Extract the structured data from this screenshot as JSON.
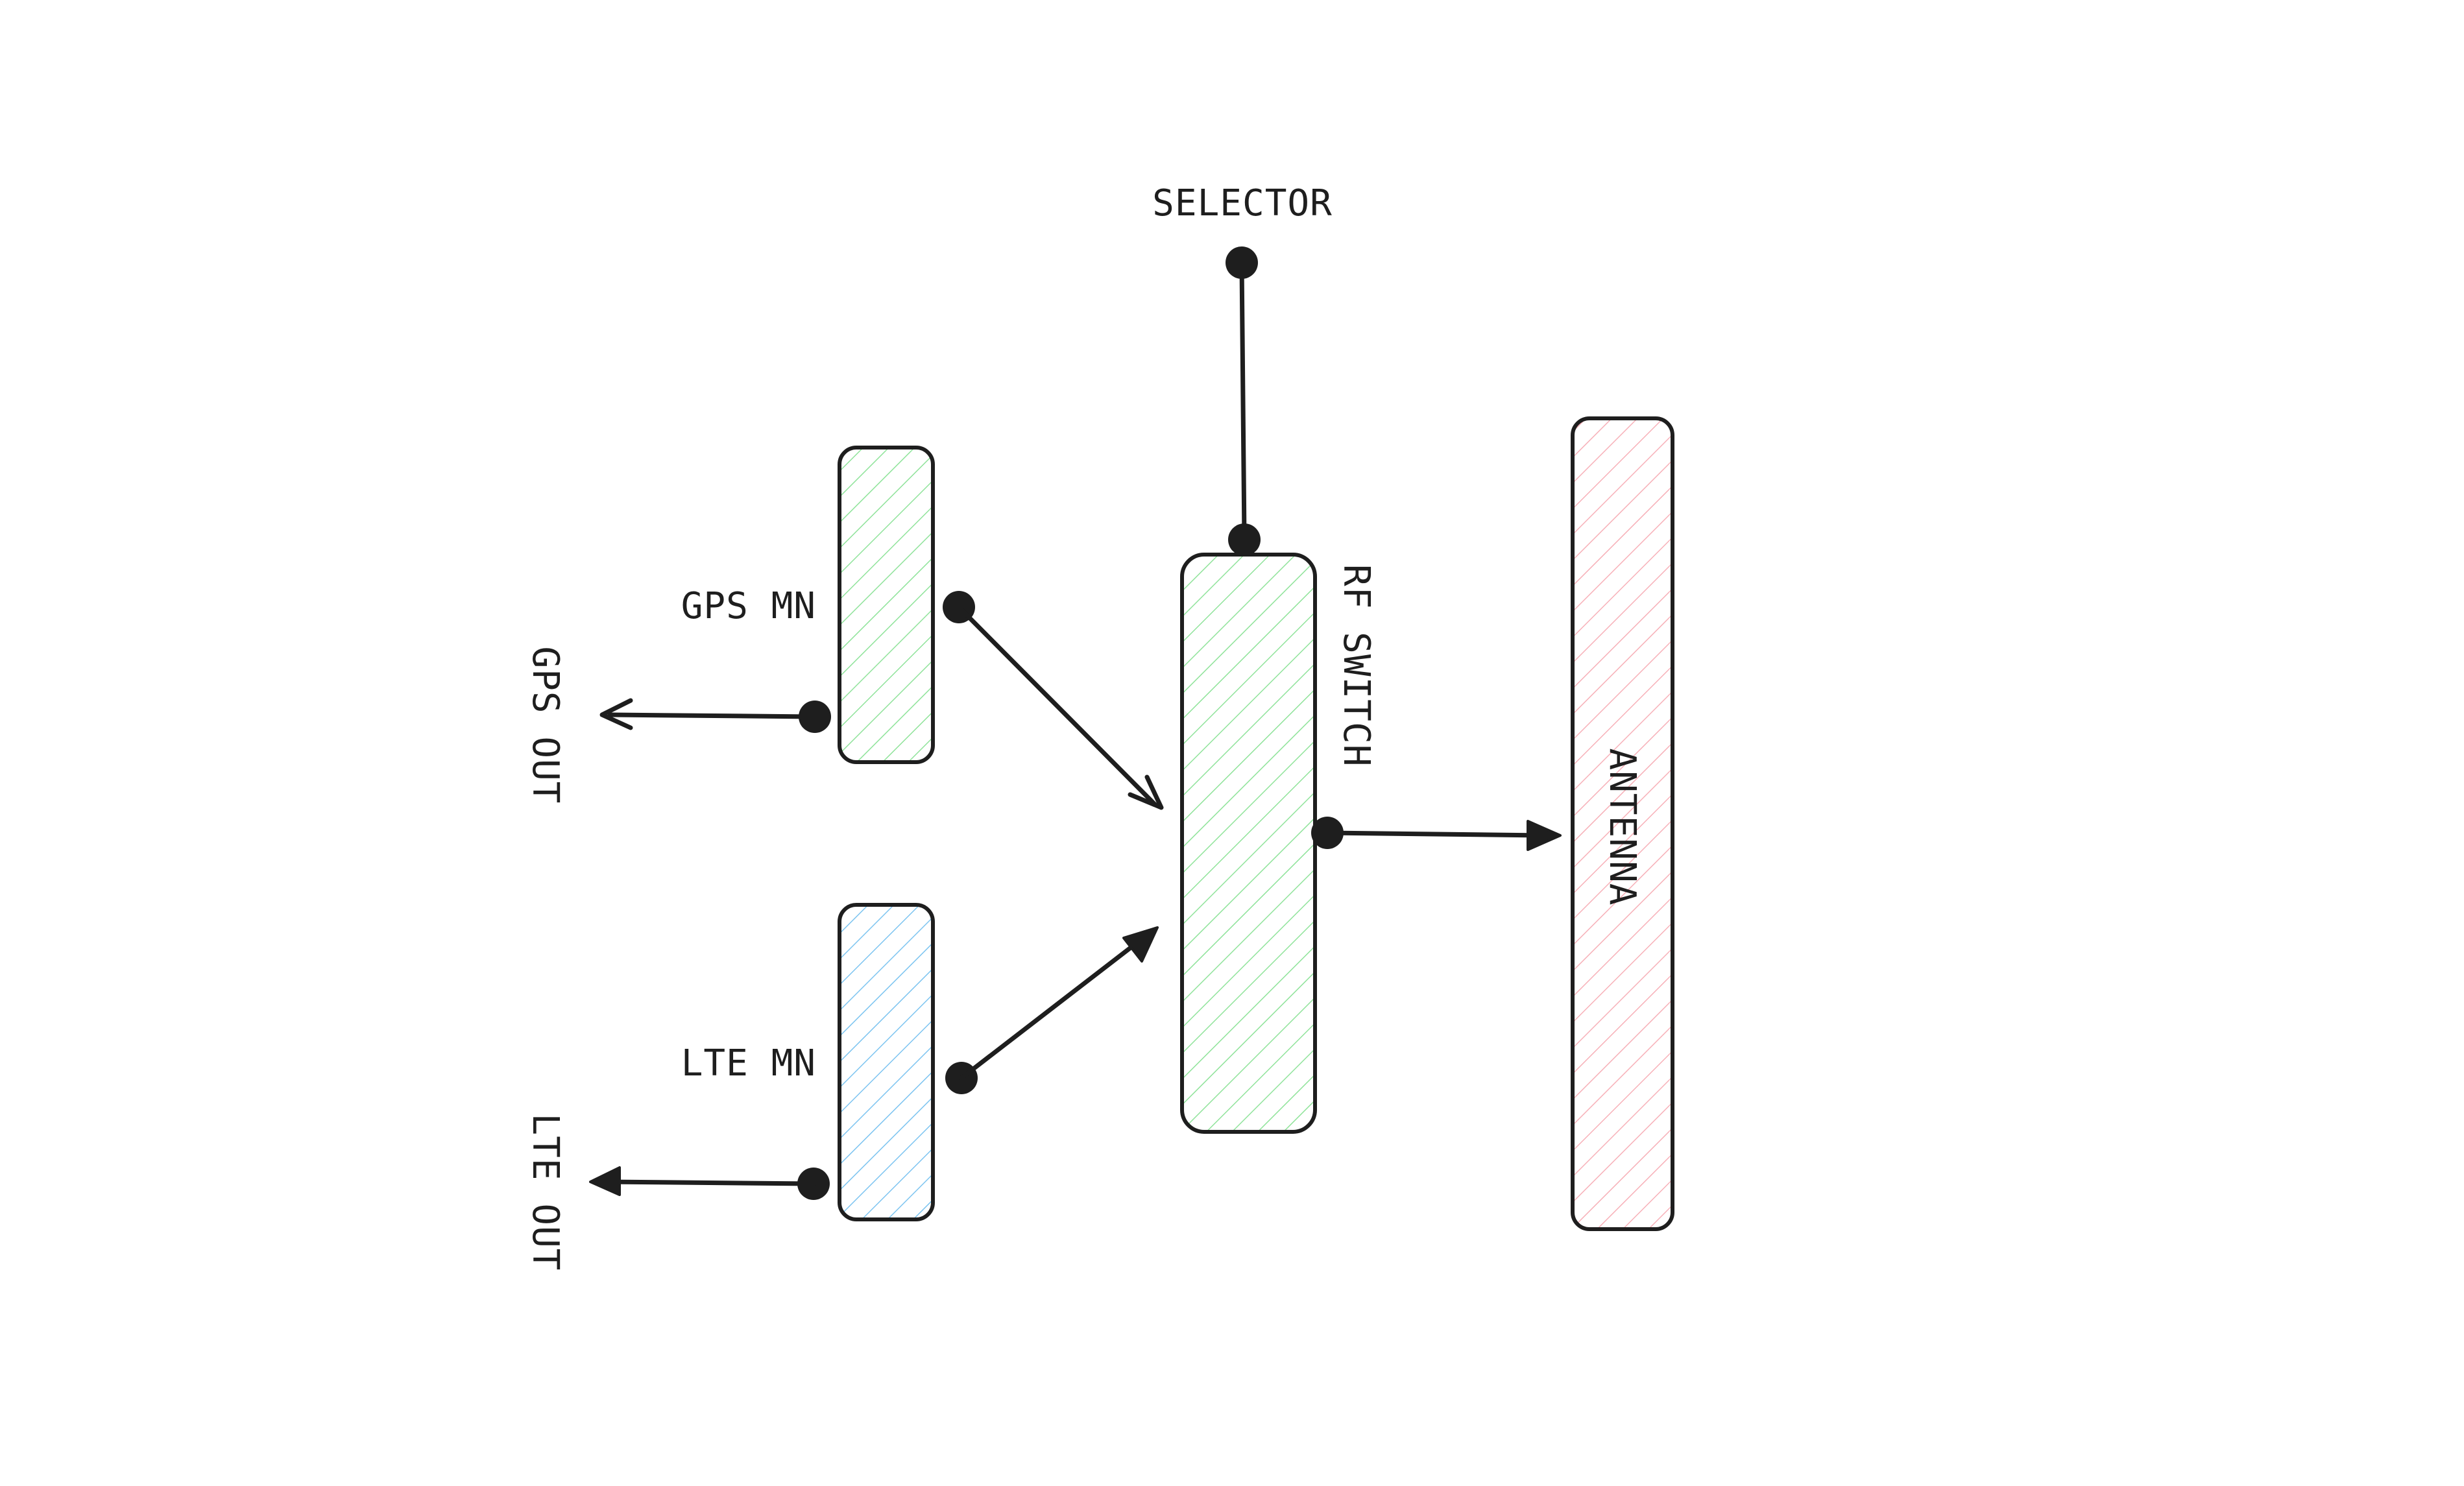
{
  "diagram": {
    "selector_label": "SELECTOR",
    "rf_switch_label": "RF SWITCH",
    "antenna_label": "ANTENNA",
    "gps_mn_label": "GPS MN",
    "lte_mn_label": "LTE MN",
    "gps_out_label": "GPS OUT",
    "lte_out_label": "LTE OUT"
  },
  "colors": {
    "stroke": "#1e1e1e",
    "green_hatch": "#8fe39a",
    "blue_hatch": "#7cc4f0",
    "red_hatch": "#f7b0b8"
  }
}
